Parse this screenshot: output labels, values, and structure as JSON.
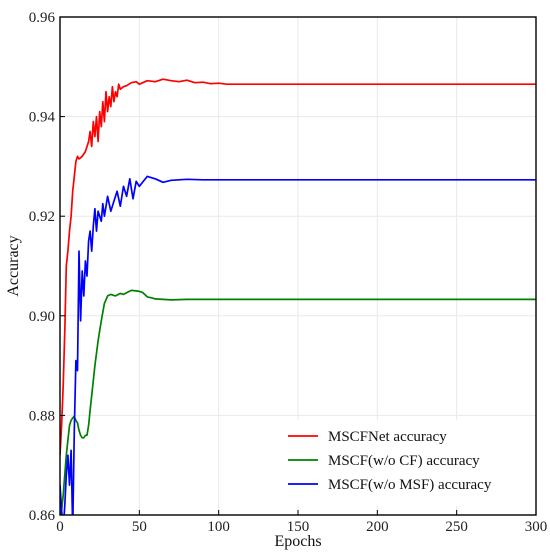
{
  "chart_data": {
    "type": "line",
    "xlabel": "Epochs",
    "ylabel": "Accuracy",
    "xlim": [
      0,
      300
    ],
    "ylim": [
      0.86,
      0.96
    ],
    "xticks": [
      0,
      50,
      100,
      150,
      200,
      250,
      300
    ],
    "yticks": [
      0.86,
      0.88,
      0.9,
      0.92,
      0.94,
      0.96
    ],
    "grid": true,
    "legend_position": "bottom-right",
    "series": [
      {
        "name": "MSCFNet accuracy",
        "color": "#ff0000",
        "x": [
          0,
          1,
          2,
          3,
          4,
          5,
          6,
          7,
          8,
          9,
          10,
          11,
          12,
          14,
          16,
          18,
          19,
          20,
          21,
          22,
          23,
          24,
          25,
          26,
          27,
          28,
          29,
          30,
          31,
          32,
          33,
          34,
          35,
          36,
          37,
          38,
          40,
          42,
          45,
          48,
          50,
          55,
          60,
          65,
          70,
          75,
          80,
          85,
          90,
          95,
          100,
          105,
          110,
          120,
          150,
          200,
          250,
          300
        ],
        "values": [
          0.872,
          0.878,
          0.886,
          0.897,
          0.91,
          0.913,
          0.917,
          0.92,
          0.925,
          0.928,
          0.931,
          0.932,
          0.9315,
          0.932,
          0.933,
          0.935,
          0.937,
          0.934,
          0.939,
          0.936,
          0.94,
          0.935,
          0.941,
          0.938,
          0.943,
          0.939,
          0.945,
          0.941,
          0.944,
          0.942,
          0.946,
          0.943,
          0.945,
          0.944,
          0.9465,
          0.9455,
          0.946,
          0.9462,
          0.9468,
          0.947,
          0.9465,
          0.9472,
          0.947,
          0.9475,
          0.9472,
          0.947,
          0.9473,
          0.9468,
          0.9469,
          0.9466,
          0.9467,
          0.9465,
          0.9465,
          0.9465,
          0.9465,
          0.9465,
          0.9465,
          0.9465
        ]
      },
      {
        "name": "MSCF(w/o CF) accuracy",
        "color": "#008000",
        "x": [
          0,
          2,
          4,
          6,
          7,
          8,
          9,
          10,
          11,
          12,
          13,
          14,
          15,
          16,
          17,
          18,
          19,
          20,
          22,
          24,
          26,
          28,
          30,
          32,
          35,
          38,
          40,
          43,
          45,
          48,
          50,
          52,
          55,
          58,
          60,
          65,
          70,
          80,
          90,
          100,
          150,
          200,
          250,
          300
        ],
        "values": [
          0.858,
          0.864,
          0.872,
          0.878,
          0.879,
          0.8795,
          0.8798,
          0.879,
          0.8785,
          0.877,
          0.876,
          0.8755,
          0.8755,
          0.876,
          0.876,
          0.878,
          0.881,
          0.884,
          0.89,
          0.895,
          0.899,
          0.9025,
          0.904,
          0.9043,
          0.904,
          0.9045,
          0.9043,
          0.9048,
          0.9051,
          0.905,
          0.9049,
          0.9047,
          0.9038,
          0.9036,
          0.9034,
          0.9033,
          0.9032,
          0.9033,
          0.9033,
          0.9033,
          0.9033,
          0.9033,
          0.9033,
          0.9033
        ]
      },
      {
        "name": "MSCF(w/o MSF) accuracy",
        "color": "#0000ff",
        "x": [
          0,
          1,
          2,
          3,
          4,
          5,
          6,
          7,
          8,
          9,
          10,
          11,
          12,
          13,
          14,
          15,
          16,
          17,
          18,
          19,
          20,
          21,
          22,
          23,
          24,
          25,
          26,
          27,
          28,
          29,
          30,
          32,
          34,
          36,
          38,
          40,
          42,
          44,
          46,
          48,
          50,
          55,
          60,
          65,
          70,
          80,
          90,
          100,
          150,
          200,
          250,
          300
        ],
        "values": [
          0.866,
          0.861,
          0.857,
          0.862,
          0.868,
          0.872,
          0.866,
          0.873,
          0.857,
          0.877,
          0.891,
          0.889,
          0.913,
          0.899,
          0.909,
          0.904,
          0.911,
          0.908,
          0.915,
          0.917,
          0.913,
          0.918,
          0.9215,
          0.917,
          0.921,
          0.92,
          0.919,
          0.9225,
          0.92,
          0.922,
          0.924,
          0.921,
          0.923,
          0.925,
          0.922,
          0.926,
          0.924,
          0.9275,
          0.9235,
          0.927,
          0.926,
          0.928,
          0.9275,
          0.9268,
          0.9272,
          0.9274,
          0.9273,
          0.9273,
          0.9273,
          0.9273,
          0.9273,
          0.9273
        ]
      }
    ]
  }
}
